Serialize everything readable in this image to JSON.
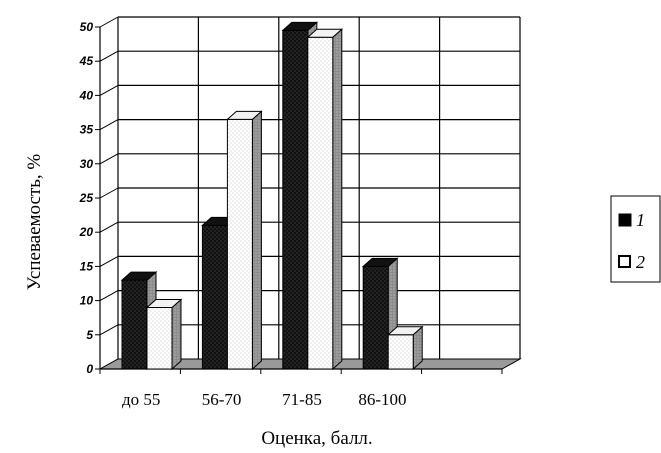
{
  "chart_data": {
    "type": "bar",
    "categories": [
      "до 55",
      "56-70",
      "71-85",
      "86-100"
    ],
    "series": [
      {
        "name": "1",
        "values": [
          13,
          21,
          49.5,
          15
        ],
        "color": "#1a1a1a"
      },
      {
        "name": "2",
        "values": [
          9,
          36.5,
          48.5,
          5
        ],
        "color": "#ffffff"
      }
    ],
    "yticks": [
      "0",
      "5",
      "10",
      "15",
      "20",
      "25",
      "30",
      "35",
      "40",
      "45",
      "50"
    ],
    "ylim": [
      0,
      50
    ],
    "xlabel": "Оценка, балл.",
    "ylabel": "Успеваемость, %",
    "grid": true,
    "legend_position": "right"
  }
}
